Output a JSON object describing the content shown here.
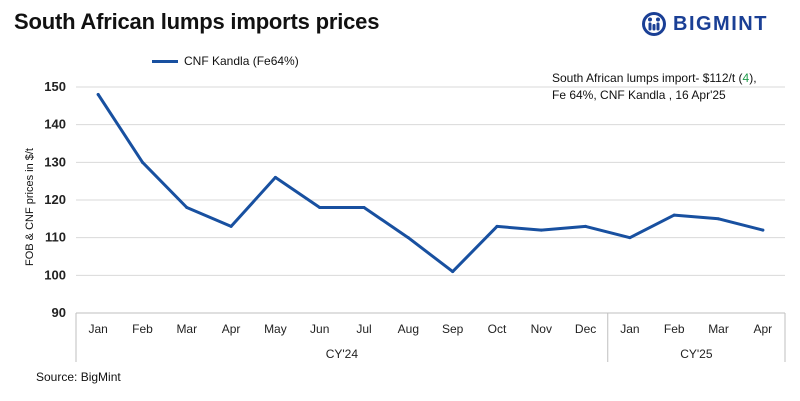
{
  "title": "South African lumps imports prices",
  "logo": {
    "text": "BIGMINT",
    "icon": "bigmint-logo-icon",
    "color": "#1a3f95"
  },
  "annotation": {
    "line1_prefix": "South African lumps import- $112/t (",
    "change": "4",
    "line1_suffix": "),",
    "line2": "Fe 64%, CNF Kandla , 16 Apr'25"
  },
  "source": "Source: BigMint",
  "chart_data": {
    "type": "line",
    "ylabel": "FOB & CNF prices in $/t",
    "ylim": [
      90,
      150
    ],
    "yticks": [
      90,
      100,
      110,
      120,
      130,
      140,
      150
    ],
    "grid": true,
    "legend_position": "top-left",
    "categories": [
      "Jan",
      "Feb",
      "Mar",
      "Apr",
      "May",
      "Jun",
      "Jul",
      "Aug",
      "Sep",
      "Oct",
      "Nov",
      "Dec",
      "Jan",
      "Feb",
      "Mar",
      "Apr"
    ],
    "groups": [
      {
        "label": "CY'24",
        "count": 12
      },
      {
        "label": "CY'25",
        "count": 4
      }
    ],
    "series": [
      {
        "name": "CNF Kandla (Fe64%)",
        "color": "#1850a0",
        "values": [
          148,
          130,
          118,
          113,
          126,
          118,
          118,
          110,
          101,
          113,
          112,
          113,
          110,
          116,
          115,
          112
        ]
      }
    ]
  }
}
